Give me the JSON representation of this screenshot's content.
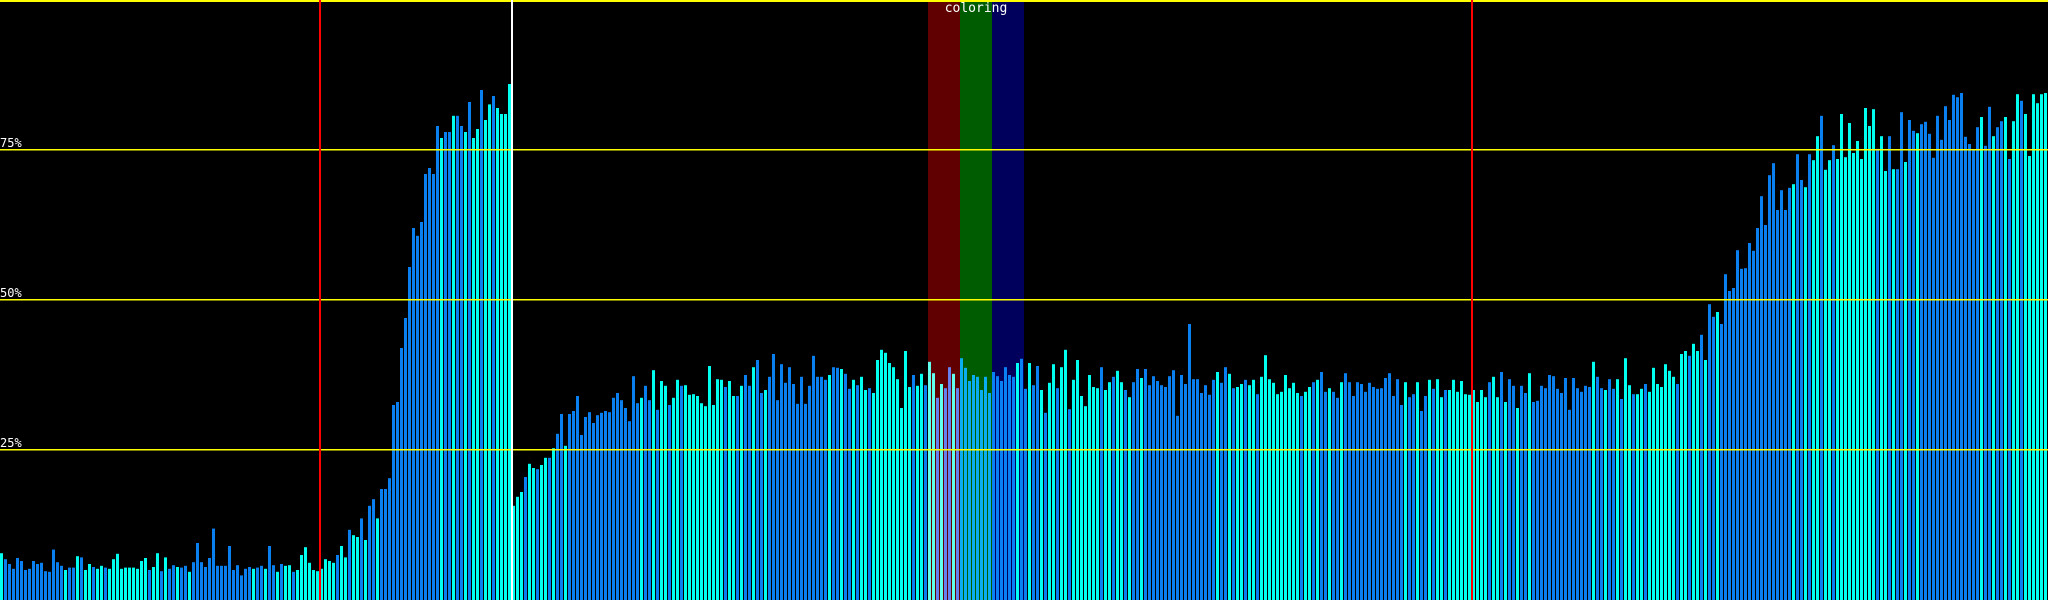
{
  "chart_data": {
    "type": "bar",
    "title": "",
    "xlabel": "",
    "ylabel": "",
    "ylim": [
      0,
      100
    ],
    "y_unit": "%",
    "y_ticks": [
      {
        "value": 75,
        "label": "75%"
      },
      {
        "value": 50,
        "label": "50%"
      },
      {
        "value": 25,
        "label": "25%"
      }
    ],
    "grid": "horizontal",
    "bar_colors": [
      "#0a80f0",
      "#00ffee"
    ],
    "gridline_color": "#ffff00",
    "markers": [
      {
        "bar_index": 80,
        "color": "#ff0000"
      },
      {
        "bar_index": 128,
        "color": "#ffffff"
      },
      {
        "bar_index": 368,
        "color": "#ff0000"
      }
    ],
    "band_label": "coloring",
    "bands": [
      {
        "from_index": 232,
        "to_index": 240,
        "color": "#600000"
      },
      {
        "from_index": 240,
        "to_index": 248,
        "color": "#005c00"
      },
      {
        "from_index": 248,
        "to_index": 256,
        "color": "#00005c"
      }
    ],
    "values": [
      7.8,
      6.8,
      6,
      5.2,
      7,
      6.5,
      5,
      5.2,
      6.5,
      6,
      6.2,
      4.8,
      4.7,
      8.4,
      6.3,
      5.7,
      5,
      5.4,
      5.4,
      7.3,
      7.1,
      5,
      6,
      5.5,
      5.2,
      5.7,
      5.4,
      5.2,
      6.8,
      7.7,
      5.2,
      5.4,
      5.4,
      5.4,
      5.2,
      6.5,
      7,
      5,
      5.5,
      7.8,
      4.8,
      7.1,
      5.2,
      5.8,
      5.5,
      5.4,
      5.7,
      4.7,
      6.3,
      9.5,
      6.3,
      5.5,
      7,
      11.9,
      5.7,
      5.7,
      5.7,
      9,
      5,
      5.8,
      4.1,
      5.2,
      5.5,
      5.2,
      5.4,
      5.7,
      5.2,
      9,
      5.8,
      4.7,
      6,
      5.7,
      5.8,
      4.7,
      5,
      7.5,
      8.8,
      6.2,
      5,
      4.8,
      5.2,
      6.8,
      6.5,
      6.2,
      7.5,
      9,
      7.1,
      11.7,
      10.8,
      10.5,
      13.6,
      10,
      15.7,
      16.8,
      13.6,
      18.5,
      18.5,
      20.3,
      32.5,
      33,
      42,
      47,
      55.5,
      62,
      60.7,
      63,
      71,
      72,
      71,
      79,
      77,
      78,
      78,
      80.7,
      80.7,
      79,
      78,
      83,
      77,
      78.5,
      85,
      80,
      82.6,
      84,
      82,
      81,
      81,
      86,
      15.7,
      17.2,
      18,
      20.5,
      22.7,
      22,
      21.8,
      22.5,
      23.7,
      23.7,
      25.3,
      27.7,
      31,
      25.7,
      31,
      31.5,
      34,
      27.5,
      30.5,
      31.3,
      29.5,
      30.8,
      31.2,
      31.5,
      31.3,
      33.7,
      34.5,
      33.3,
      32,
      29.8,
      37.3,
      32.8,
      33.7,
      35.7,
      33.3,
      38.3,
      31.7,
      36.5,
      35.7,
      32.5,
      33.7,
      36.7,
      35.7,
      35.8,
      34.2,
      34.3,
      34,
      32.8,
      32.3,
      39,
      32.5,
      36.8,
      36.7,
      35.5,
      36.5,
      34,
      34,
      35.7,
      37.5,
      35.7,
      38.8,
      40,
      34.5,
      35,
      37.2,
      41,
      33.3,
      39.3,
      36.2,
      38.8,
      36,
      32.7,
      37.2,
      32.7,
      35.7,
      40.7,
      37.2,
      37.2,
      36.7,
      37.5,
      38.8,
      38.7,
      38.5,
      37.7,
      35.2,
      36.7,
      35.8,
      37.2,
      35,
      35.3,
      34.5,
      40,
      41.7,
      41.2,
      39.5,
      38.8,
      36.8,
      32,
      41.5,
      35.5,
      37.5,
      35.7,
      37.7,
      35.8,
      39.7,
      37.8,
      33.7,
      36,
      35.3,
      38.8,
      37.7,
      35.3,
      40.3,
      38.7,
      36.5,
      37.5,
      37.2,
      35,
      37.2,
      34.5,
      38,
      37.3,
      36.5,
      38.8,
      37.5,
      37.2,
      39.5,
      40.2,
      35.2,
      39.5,
      35.8,
      39,
      35,
      31.2,
      36.2,
      39.3,
      35.3,
      38.8,
      41.7,
      31.8,
      36.7,
      40,
      34,
      32.3,
      37.5,
      35.5,
      35.3,
      38.8,
      35,
      36.3,
      37.2,
      38.2,
      36.3,
      35,
      33.8,
      36.3,
      38.5,
      37,
      38.5,
      35.8,
      37.3,
      36.5,
      35.8,
      35.5,
      37.3,
      38.3,
      30.7,
      37.5,
      36,
      46,
      36.8,
      36.8,
      34.5,
      35.8,
      34.2,
      36.7,
      38,
      36.2,
      38.8,
      37.7,
      35.3,
      35.5,
      36,
      36.7,
      35.8,
      36.7,
      34.3,
      37.2,
      40.8,
      36.8,
      36.2,
      34.3,
      34.7,
      37.5,
      35.3,
      36.2,
      34.5,
      34,
      34.7,
      35.5,
      36.3,
      36.7,
      38,
      34.7,
      35.3,
      34.7,
      33.7,
      36.3,
      37.8,
      36.3,
      34,
      36.3,
      36,
      34.7,
      36.2,
      35.5,
      35.2,
      35.3,
      37,
      37.8,
      34,
      36.8,
      32.5,
      36.3,
      33.8,
      34.3,
      36.3,
      31.5,
      34,
      36.7,
      35.2,
      36.8,
      33.8,
      35,
      35,
      36.7,
      34.7,
      36.5,
      34.3,
      34.2,
      35,
      33,
      35,
      33.8,
      36.3,
      37.2,
      33.8,
      38,
      33,
      36.8,
      35.7,
      32,
      35.7,
      34.5,
      37.8,
      33,
      33.2,
      35.7,
      35.3,
      37.5,
      37.3,
      35.2,
      34.5,
      37,
      31.7,
      37,
      35.3,
      34.7,
      35.7,
      35.5,
      39.7,
      37.2,
      35.3,
      35,
      36.8,
      35.2,
      36.8,
      33.5,
      40.3,
      35.8,
      34.3,
      34.3,
      35.2,
      36,
      34.7,
      38.7,
      36,
      35.5,
      39.3,
      38.2,
      37.2,
      36,
      41,
      41.5,
      40.7,
      42.7,
      41.5,
      44.2,
      40,
      49.3,
      47.2,
      48,
      46,
      54.3,
      51.5,
      52,
      58.3,
      55.2,
      55.3,
      59.5,
      58.2,
      62,
      67.3,
      62.5,
      70.8,
      72.8,
      65,
      68.3,
      65,
      68.7,
      69.3,
      74.3,
      70,
      68.8,
      74.3,
      73.3,
      77.3,
      80.7,
      71.7,
      73.3,
      75.8,
      73.5,
      81,
      73.8,
      79.5,
      74.5,
      76.5,
      73.5,
      82,
      79,
      81.8,
      75.2,
      77.3,
      71.5,
      77.3,
      71.8,
      71.8,
      81.3,
      73,
      80,
      78.2,
      77.8,
      79.3,
      79.7,
      77.7,
      73.7,
      80.7,
      76.7,
      82.3,
      80,
      84.2,
      83.8,
      84.5,
      77.2,
      76,
      75,
      78.8,
      80.5,
      75.7,
      82.2,
      77.3,
      78.8,
      79.8,
      80.5,
      73.5,
      79.8,
      84.3,
      83.2,
      81,
      74,
      84.3,
      82.8,
      84.3,
      84.5
    ]
  }
}
